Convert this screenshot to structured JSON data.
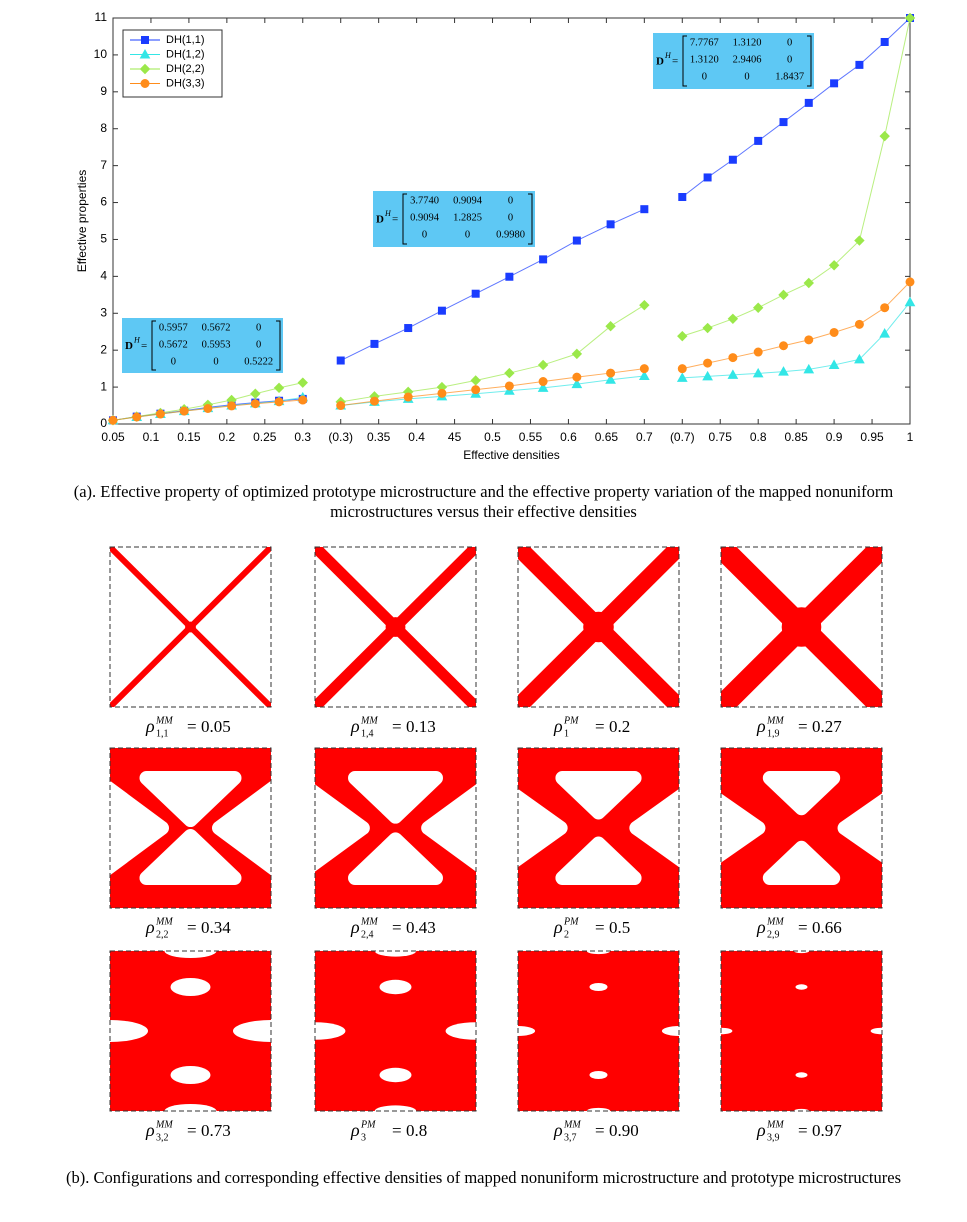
{
  "chart_data": {
    "type": "line",
    "xlabel": "Effective densities",
    "ylabel": "Effective properties",
    "xlim": [
      0,
      21
    ],
    "xticks": [
      {
        "value": 0,
        "label": "0.05"
      },
      {
        "value": 1,
        "label": "0.1"
      },
      {
        "value": 2,
        "label": "0.15"
      },
      {
        "value": 3,
        "label": "0.2"
      },
      {
        "value": 4,
        "label": "0.25"
      },
      {
        "value": 5,
        "label": "0.3"
      },
      {
        "value": 6,
        "label": "(0.3)"
      },
      {
        "value": 7,
        "label": "0.35"
      },
      {
        "value": 8,
        "label": "0.4"
      },
      {
        "value": 9,
        "label": "45"
      },
      {
        "value": 10,
        "label": "0.5"
      },
      {
        "value": 11,
        "label": "0.55"
      },
      {
        "value": 12,
        "label": "0.6"
      },
      {
        "value": 13,
        "label": "0.65"
      },
      {
        "value": 14,
        "label": "0.7"
      },
      {
        "value": 15,
        "label": "(0.7)"
      },
      {
        "value": 16,
        "label": "0.75"
      },
      {
        "value": 17,
        "label": "0.8"
      },
      {
        "value": 18,
        "label": "0.85"
      },
      {
        "value": 19,
        "label": "0.9"
      },
      {
        "value": 20,
        "label": "0.95"
      },
      {
        "value": 21,
        "label": "1"
      }
    ],
    "ylim": [
      0,
      11
    ],
    "yticks": [
      0,
      1,
      2,
      3,
      4,
      5,
      6,
      7,
      8,
      9,
      10,
      11
    ],
    "legend": "upper left",
    "x": [
      0,
      0.625,
      1.25,
      1.875,
      2.5,
      3.125,
      3.75,
      4.375,
      5,
      5.5,
      6,
      6.889,
      7.778,
      8.667,
      9.556,
      10.444,
      11.333,
      12.222,
      13.111,
      14,
      14.5,
      15,
      15.667,
      16.333,
      17,
      17.667,
      18.333,
      19,
      19.667,
      20.333,
      21
    ],
    "series": [
      {
        "name": "DH(1,1)",
        "color": "#1a3cff",
        "marker": "square",
        "values": [
          0.1,
          0.2,
          0.28,
          0.36,
          0.45,
          0.52,
          0.58,
          0.63,
          0.68,
          null,
          1.72,
          2.17,
          2.6,
          3.07,
          3.53,
          3.99,
          4.46,
          4.97,
          5.41,
          5.82,
          null,
          6.15,
          6.68,
          7.16,
          7.67,
          8.18,
          8.7,
          9.23,
          9.73,
          10.35,
          11.0
        ]
      },
      {
        "name": "DH(1,2)",
        "color": "#33e6e6",
        "marker": "triangle",
        "values": [
          0.1,
          0.19,
          0.27,
          0.35,
          0.43,
          0.5,
          0.56,
          0.62,
          0.72,
          null,
          0.5,
          0.6,
          0.68,
          0.75,
          0.82,
          0.9,
          0.98,
          1.08,
          1.2,
          1.3,
          null,
          1.25,
          1.29,
          1.33,
          1.37,
          1.42,
          1.48,
          1.6,
          1.75,
          2.45,
          3.3
        ]
      },
      {
        "name": "DH(2,2)",
        "color": "#9be84a",
        "marker": "diamond",
        "values": [
          0.1,
          0.2,
          0.3,
          0.4,
          0.52,
          0.65,
          0.82,
          0.98,
          1.12,
          null,
          0.6,
          0.75,
          0.87,
          1.0,
          1.18,
          1.38,
          1.6,
          1.9,
          2.65,
          3.22,
          null,
          2.38,
          2.6,
          2.85,
          3.15,
          3.5,
          3.82,
          4.3,
          4.97,
          7.8,
          11.0
        ]
      },
      {
        "name": "DH(3,3)",
        "color": "#ff8c1a",
        "marker": "circle",
        "values": [
          0.1,
          0.19,
          0.27,
          0.35,
          0.42,
          0.49,
          0.55,
          0.6,
          0.65,
          null,
          0.5,
          0.62,
          0.73,
          0.83,
          0.93,
          1.03,
          1.15,
          1.27,
          1.38,
          1.5,
          null,
          1.5,
          1.65,
          1.8,
          1.95,
          2.12,
          2.28,
          2.48,
          2.7,
          3.15,
          3.85
        ]
      }
    ],
    "annotations": [
      {
        "symbol": "D",
        "superscript": "H",
        "equals": "=",
        "matrix": [
          [
            "0.5957",
            "0.5672",
            "0"
          ],
          [
            "0.5672",
            "0.5953",
            "0"
          ],
          [
            "0",
            "0",
            "0.5222"
          ]
        ]
      },
      {
        "symbol": "D",
        "superscript": "H",
        "equals": "=",
        "matrix": [
          [
            "3.7740",
            "0.9094",
            "0"
          ],
          [
            "0.9094",
            "1.2825",
            "0"
          ],
          [
            "0",
            "0",
            "0.9980"
          ]
        ]
      },
      {
        "symbol": "D",
        "superscript": "H",
        "equals": "=",
        "matrix": [
          [
            "7.7767",
            "1.3120",
            "0"
          ],
          [
            "1.3120",
            "2.9406",
            "0"
          ],
          [
            "0",
            "0",
            "1.8437"
          ]
        ]
      }
    ]
  },
  "caption_a": "(a). Effective property of optimized prototype microstructure and the effective property variation of the mapped nonuniform microstructures versus their effective densities",
  "panels": [
    {
      "symbol": "ρ",
      "subscript": "1,1",
      "superscript": "MM",
      "equals": "=",
      "value": "0.05"
    },
    {
      "symbol": "ρ",
      "subscript": "1,4",
      "superscript": "MM",
      "equals": "=",
      "value": "0.13"
    },
    {
      "symbol": "ρ",
      "subscript": "1",
      "superscript": "PM",
      "equals": "=",
      "value": "0.2"
    },
    {
      "symbol": "ρ",
      "subscript": "1,9",
      "superscript": "MM",
      "equals": "=",
      "value": "0.27"
    },
    {
      "symbol": "ρ",
      "subscript": "2,2",
      "superscript": "MM",
      "equals": "=",
      "value": "0.34"
    },
    {
      "symbol": "ρ",
      "subscript": "2,4",
      "superscript": "MM",
      "equals": "=",
      "value": "0.43"
    },
    {
      "symbol": "ρ",
      "subscript": "2",
      "superscript": "PM",
      "equals": "=",
      "value": "0.5"
    },
    {
      "symbol": "ρ",
      "subscript": "2,9",
      "superscript": "MM",
      "equals": "=",
      "value": "0.66"
    },
    {
      "symbol": "ρ",
      "subscript": "3,2",
      "superscript": "MM",
      "equals": "=",
      "value": "0.73"
    },
    {
      "symbol": "ρ",
      "subscript": "3",
      "superscript": "PM",
      "equals": "=",
      "value": "0.8"
    },
    {
      "symbol": "ρ",
      "subscript": "3,7",
      "superscript": "MM",
      "equals": "=",
      "value": "0.90"
    },
    {
      "symbol": "ρ",
      "subscript": "3,9",
      "superscript": "MM",
      "equals": "=",
      "value": "0.97"
    }
  ],
  "caption_b": "(b). Configurations and corresponding effective densities of mapped nonuniform microstructure and prototype microstructures"
}
